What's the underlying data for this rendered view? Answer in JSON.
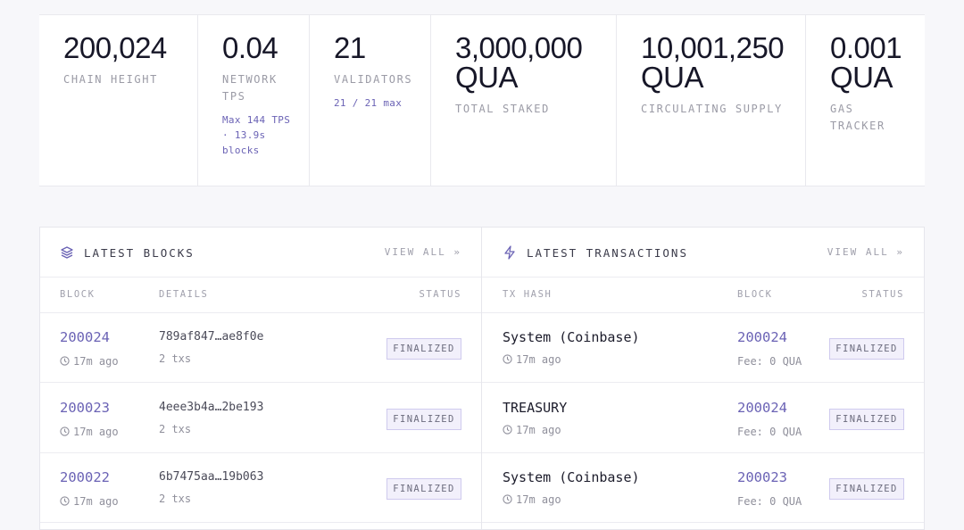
{
  "stats": [
    {
      "value": "200,024",
      "label": "CHAIN HEIGHT"
    },
    {
      "value": "0.04",
      "label": "NETWORK TPS",
      "note": "Max 144 TPS · 13.9s blocks"
    },
    {
      "value": "21",
      "label": "VALIDATORS",
      "note": "21 / 21 max"
    },
    {
      "value": "3,000,000 QUA",
      "label": "TOTAL STAKED"
    },
    {
      "value": "10,001,250 QUA",
      "label": "CIRCULATING SUPPLY"
    },
    {
      "value": "0.001 QUA",
      "label": "GAS TRACKER"
    }
  ],
  "blocks_panel": {
    "title": "LATEST BLOCKS",
    "view_all": "VIEW ALL »",
    "columns": [
      "BLOCK",
      "DETAILS",
      "STATUS"
    ],
    "rows": [
      {
        "block": "200024",
        "age": "17m ago",
        "hash": "789af847…ae8f0e",
        "txs": "2 txs",
        "status": "FINALIZED"
      },
      {
        "block": "200023",
        "age": "17m ago",
        "hash": "4eee3b4a…2be193",
        "txs": "2 txs",
        "status": "FINALIZED"
      },
      {
        "block": "200022",
        "age": "17m ago",
        "hash": "6b7475aa…19b063",
        "txs": "2 txs",
        "status": "FINALIZED"
      }
    ]
  },
  "transactions_panel": {
    "title": "LATEST TRANSACTIONS",
    "view_all": "VIEW ALL »",
    "columns": [
      "TX HASH",
      "BLOCK",
      "STATUS"
    ],
    "rows": [
      {
        "hash": "System (Coinbase)",
        "age": "17m ago",
        "block": "200024",
        "fee": "Fee: 0 QUA",
        "status": "FINALIZED"
      },
      {
        "hash": "TREASURY",
        "age": "17m ago",
        "block": "200024",
        "fee": "Fee: 0 QUA",
        "status": "FINALIZED"
      },
      {
        "hash": "System (Coinbase)",
        "age": "17m ago",
        "block": "200023",
        "fee": "Fee: 0 QUA",
        "status": "FINALIZED"
      }
    ]
  }
}
